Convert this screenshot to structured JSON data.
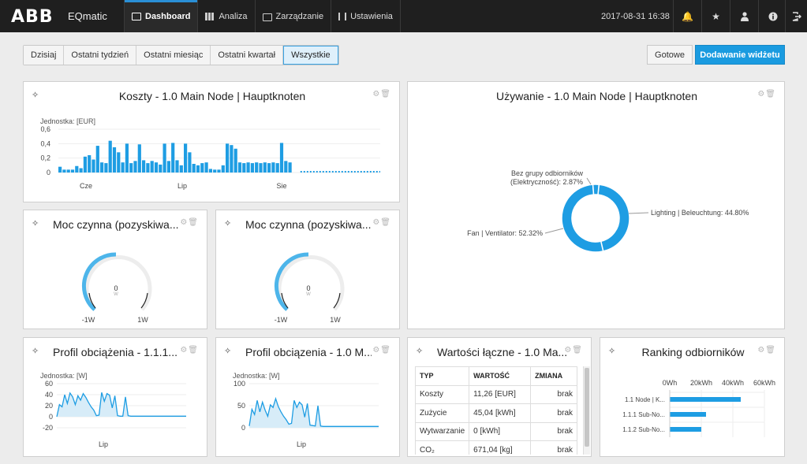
{
  "app": {
    "logo": "ABB",
    "name": "EQmatic"
  },
  "nav": [
    {
      "label": "Dashboard",
      "icon": "dashboard-icon"
    },
    {
      "label": "Analiza",
      "icon": "bar-chart-icon"
    },
    {
      "label": "Zarządzanie",
      "icon": "briefcase-icon"
    },
    {
      "label": "Ustawienia",
      "icon": "sliders-icon"
    }
  ],
  "header": {
    "datetime": "2017-08-31 16:38",
    "icons": [
      "bell-icon",
      "star-icon",
      "user-icon",
      "info-icon",
      "logout-icon"
    ]
  },
  "toolbar": {
    "ranges": [
      "Dzisiaj",
      "Ostatni tydzień",
      "Ostatni miesiąc",
      "Ostatni kwartał",
      "Wszystkie"
    ],
    "active_range": "Wszystkie",
    "done_label": "Gotowe",
    "add_label": "Dodawanie widżetu"
  },
  "colors": {
    "accent": "#1a9be0",
    "bar": "#1e9de3",
    "topbar": "#1f1f1f"
  },
  "widgets": {
    "costs": {
      "title": "Koszty - 1.0 Main Node | Hauptknoten",
      "unit": "Jednostka: [EUR]",
      "chart_data": {
        "type": "bar",
        "y_ticks": [
          "0,6",
          "0,4",
          "0,2",
          "0"
        ],
        "ylim": [
          0,
          0.6
        ],
        "x_labels": [
          "Cze",
          "Lip",
          "Sie"
        ],
        "values": [
          0.08,
          0.04,
          0.04,
          0.04,
          0.09,
          0.06,
          0.22,
          0.24,
          0.18,
          0.37,
          0.14,
          0.13,
          0.44,
          0.35,
          0.28,
          0.14,
          0.4,
          0.13,
          0.16,
          0.39,
          0.17,
          0.13,
          0.16,
          0.14,
          0.11,
          0.4,
          0.16,
          0.41,
          0.17,
          0.1,
          0.4,
          0.28,
          0.12,
          0.1,
          0.13,
          0.14,
          0.05,
          0.04,
          0.04,
          0.1,
          0.4,
          0.38,
          0.33,
          0.14,
          0.13,
          0.14,
          0.13,
          0.14,
          0.13,
          0.14,
          0.13,
          0.14,
          0.13,
          0.41,
          0.16,
          0.14
        ]
      }
    },
    "usage": {
      "title": "Używanie - 1.0 Main Node | Hauptknoten",
      "chart_data": {
        "type": "pie",
        "slices": [
          {
            "label": "Lighting | Beleuchtung: 44.80%",
            "value": 44.8
          },
          {
            "label": "Fan | Ventilator: 52.32%",
            "value": 52.32
          },
          {
            "label_line1": "Bez grupy odbiorników",
            "label_line2": "(Elektryczność): 2.87%",
            "value": 2.87
          }
        ]
      }
    },
    "power1": {
      "title": "Moc czynna (pozyskiwa...",
      "value": "0",
      "unit": "W",
      "min": "-1W",
      "max": "1W"
    },
    "power2": {
      "title": "Moc czynna (pozyskiwa...",
      "value": "0",
      "unit": "W",
      "min": "-1W",
      "max": "1W"
    },
    "load1": {
      "title": "Profil obciążenia - 1.1.1...",
      "unit": "Jednostka: [W]",
      "chart_data": {
        "type": "area",
        "y_ticks": [
          "60",
          "40",
          "20",
          "0",
          "-20"
        ],
        "ylim": [
          -20,
          60
        ],
        "x_labels": [
          "Lip"
        ],
        "values": [
          0,
          22,
          18,
          40,
          24,
          43,
          36,
          22,
          38,
          30,
          42,
          35,
          26,
          18,
          12,
          2,
          3,
          44,
          28,
          42,
          39,
          16,
          38,
          2,
          1,
          1,
          36,
          2,
          1,
          1,
          1,
          1,
          1,
          1,
          1,
          1,
          1,
          1,
          1,
          1,
          1,
          1,
          1,
          1,
          1,
          1,
          1,
          1,
          1,
          1
        ]
      }
    },
    "load2": {
      "title": "Profil obciązenia - 1.0 M...",
      "unit": "Jednostka: [W]",
      "chart_data": {
        "type": "area",
        "y_ticks": [
          "100",
          "50",
          "0"
        ],
        "ylim": [
          0,
          100
        ],
        "x_labels": [
          "Lip"
        ],
        "values": [
          4,
          42,
          30,
          62,
          36,
          58,
          40,
          26,
          52,
          46,
          66,
          48,
          36,
          26,
          18,
          8,
          10,
          62,
          46,
          58,
          52,
          24,
          55,
          6,
          5,
          4,
          50,
          4,
          3,
          3,
          3,
          3,
          3,
          3,
          3,
          3,
          3,
          3,
          3,
          3,
          3,
          3,
          3,
          3,
          3,
          3,
          3,
          3,
          3,
          3
        ]
      }
    },
    "totals": {
      "title": "Wartości łączne - 1.0 Ma...",
      "columns": [
        "TYP",
        "WARTOŚĆ",
        "ZMIANA"
      ],
      "rows": [
        {
          "type": "Koszty",
          "value": "11,26 [EUR]",
          "change": "brak"
        },
        {
          "type": "Zużycie",
          "value": "45,04 [kWh]",
          "change": "brak"
        },
        {
          "type": "Wytwarzanie",
          "value": "0 [kWh]",
          "change": "brak"
        },
        {
          "type": "CO₂",
          "value": "671,04 [kg]",
          "change": "brak"
        }
      ]
    },
    "ranking": {
      "title": "Ranking odbiorników",
      "chart_data": {
        "type": "bar",
        "orientation": "horizontal",
        "x_ticks": [
          "0Wh",
          "20kWh",
          "40kWh",
          "60kWh"
        ],
        "xlim": [
          0,
          60
        ],
        "categories": [
          "1.1 Node | K...",
          "1.1.1 Sub-No...",
          "1.1.2 Sub-No..."
        ],
        "values": [
          45,
          23,
          20
        ]
      }
    }
  }
}
